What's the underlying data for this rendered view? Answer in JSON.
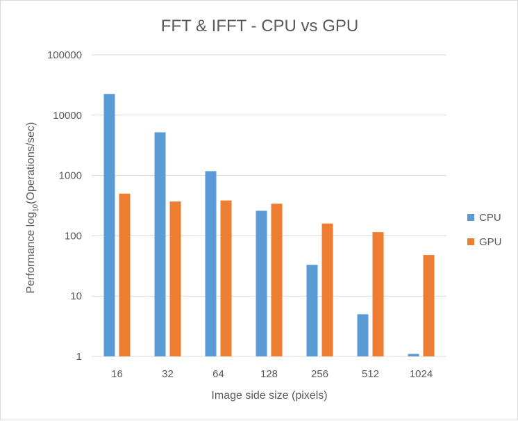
{
  "chart_data": {
    "type": "bar",
    "title": "FFT & IFFT - CPU vs GPU",
    "xlabel": "Image side size (pixels)",
    "ylabel_main": "Performance log",
    "ylabel_sub": "10",
    "ylabel_tail": "(Operations/sec)",
    "yscale": "log10",
    "ylim": [
      1,
      100000
    ],
    "yticks": [
      1,
      10,
      100,
      1000,
      10000,
      100000
    ],
    "ytick_labels": [
      "1",
      "10",
      "100",
      "1000",
      "10000",
      "100000"
    ],
    "categories": [
      "16",
      "32",
      "64",
      "128",
      "256",
      "512",
      "1024"
    ],
    "series": [
      {
        "name": "CPU",
        "color": "#5b9bd5",
        "values": [
          22500,
          5200,
          1180,
          260,
          33,
          5,
          1.1
        ]
      },
      {
        "name": "GPU",
        "color": "#ed7d31",
        "values": [
          500,
          370,
          385,
          340,
          160,
          115,
          48
        ]
      }
    ],
    "grid": true,
    "legend_position": "right"
  }
}
